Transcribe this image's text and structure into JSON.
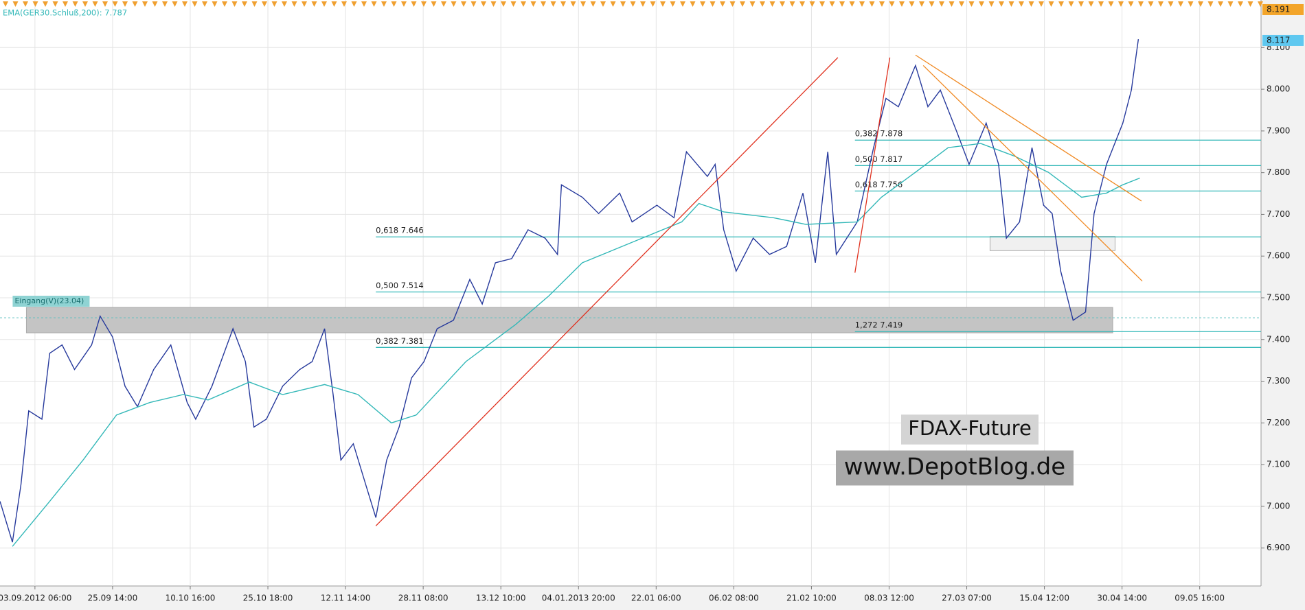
{
  "chart_data": {
    "type": "line",
    "series": [
      {
        "color": "#26399c",
        "x": [
          -0.45,
          -0.29,
          -0.18,
          -0.08,
          0.09,
          0.19,
          0.35,
          0.51,
          0.73,
          0.84,
          1.0,
          1.16,
          1.32,
          1.53,
          1.75,
          1.96,
          2.07,
          2.28,
          2.55,
          2.71,
          2.82,
          2.98,
          3.19,
          3.41,
          3.57,
          3.73,
          3.84,
          3.94,
          4.1,
          4.26,
          4.39,
          4.53,
          4.69,
          4.85,
          5.01,
          5.18,
          5.39,
          5.6,
          5.76,
          5.93,
          6.14,
          6.35,
          6.57,
          6.73,
          6.78,
          7.05,
          7.26,
          7.53,
          7.69,
          8.01,
          8.23,
          8.39,
          8.66,
          8.76,
          8.87,
          9.03,
          9.25,
          9.46,
          9.68,
          9.89,
          10.05,
          10.21,
          10.32,
          10.59,
          10.8,
          10.96,
          11.12,
          11.34,
          11.5,
          11.66,
          11.87,
          12.03,
          12.25,
          12.41,
          12.51,
          12.68,
          12.84,
          12.99,
          13.1,
          13.21,
          13.37,
          13.53,
          13.64,
          13.8,
          14.01,
          14.12,
          14.21
        ],
        "values": [
          7012,
          6914,
          7052,
          7229,
          7209,
          7367,
          7387,
          7328,
          7387,
          7456,
          7406,
          7288,
          7239,
          7328,
          7387,
          7249,
          7209,
          7288,
          7426,
          7347,
          7190,
          7209,
          7288,
          7328,
          7347,
          7426,
          7268,
          7111,
          7150,
          7052,
          6973,
          7111,
          7190,
          7308,
          7347,
          7426,
          7446,
          7544,
          7485,
          7584,
          7594,
          7663,
          7643,
          7604,
          7771,
          7741,
          7702,
          7751,
          7682,
          7722,
          7692,
          7850,
          7791,
          7820,
          7663,
          7564,
          7643,
          7604,
          7623,
          7751,
          7584,
          7850,
          7604,
          7682,
          7860,
          7978,
          7958,
          8057,
          7958,
          7998,
          7899,
          7820,
          7919,
          7820,
          7643,
          7682,
          7860,
          7722,
          7702,
          7564,
          7446,
          7466,
          7702,
          7820,
          7919,
          7998,
          8120
        ]
      },
      {
        "name": "EMA(GER30.Schluß,200): 7.787",
        "color": "#33b8b8",
        "x": [
          -0.29,
          0.19,
          0.62,
          1.05,
          1.48,
          1.91,
          2.23,
          2.76,
          3.19,
          3.73,
          4.16,
          4.59,
          4.91,
          5.55,
          6.19,
          6.62,
          7.05,
          7.69,
          8.33,
          8.55,
          8.87,
          9.51,
          9.93,
          10.59,
          10.9,
          11.34,
          11.76,
          12.18,
          12.61,
          13.05,
          13.48,
          13.8,
          14.01,
          14.23
        ],
        "values": [
          6904,
          7012,
          7111,
          7219,
          7249,
          7268,
          7255,
          7298,
          7268,
          7292,
          7268,
          7200,
          7219,
          7347,
          7436,
          7505,
          7584,
          7633,
          7682,
          7726,
          7706,
          7692,
          7676,
          7682,
          7741,
          7801,
          7860,
          7870,
          7840,
          7801,
          7741,
          7751,
          7771,
          7787
        ]
      }
    ],
    "xlim": [
      -0.45,
      15.79
    ],
    "xticks": [
      {
        "value": 0,
        "label": "03.09.2012 06:00"
      },
      {
        "value": 1,
        "label": "25.09 14:00"
      },
      {
        "value": 2,
        "label": "10.10 16:00"
      },
      {
        "value": 3,
        "label": "25.10 18:00"
      },
      {
        "value": 4,
        "label": "12.11 14:00"
      },
      {
        "value": 5,
        "label": "28.11 08:00"
      },
      {
        "value": 6,
        "label": "13.12 10:00"
      },
      {
        "value": 7,
        "label": "04.01.2013 20:00"
      },
      {
        "value": 8,
        "label": "22.01 06:00"
      },
      {
        "value": 9,
        "label": "06.02 08:00"
      },
      {
        "value": 10,
        "label": "21.02 10:00"
      },
      {
        "value": 11,
        "label": "08.03 12:00"
      },
      {
        "value": 12,
        "label": "27.03 07:00"
      },
      {
        "value": 13,
        "label": "15.04 12:00"
      },
      {
        "value": 14,
        "label": "30.04 14:00"
      },
      {
        "value": 15,
        "label": "09.05 16:00"
      }
    ],
    "ylim": [
      6809,
      8214
    ],
    "yticks": [
      {
        "value": 6900,
        "label": "6.900"
      },
      {
        "value": 7000,
        "label": "7.000"
      },
      {
        "value": 7100,
        "label": "7.100"
      },
      {
        "value": 7200,
        "label": "7.200"
      },
      {
        "value": 7300,
        "label": "7.300"
      },
      {
        "value": 7400,
        "label": "7.400"
      },
      {
        "value": 7500,
        "label": "7.500"
      },
      {
        "value": 7600,
        "label": "7.600"
      },
      {
        "value": 7700,
        "label": "7.700"
      },
      {
        "value": 7800,
        "label": "7.800"
      },
      {
        "value": 7900,
        "label": "7.900"
      },
      {
        "value": 8000,
        "label": "8.000"
      },
      {
        "value": 8100,
        "label": "8.100"
      }
    ],
    "grid": true,
    "levels": [
      {
        "label": "0,618 7.646",
        "value": 7646,
        "x": 4.39
      },
      {
        "label": "0,500 7.514",
        "value": 7514,
        "x": 4.39
      },
      {
        "label": "0,382 7.381",
        "value": 7381,
        "x": 4.39
      },
      {
        "label": "0,382 7.878",
        "value": 7878,
        "x": 10.56
      },
      {
        "label": "0,500 7.817",
        "value": 7817,
        "x": 10.56
      },
      {
        "label": "0,618 7.756",
        "value": 7756,
        "x": 10.56
      },
      {
        "label": "1,272 7.419",
        "value": 7419,
        "x": 10.56
      }
    ],
    "level_color": "#33b8b8",
    "zones": [
      {
        "label": "Eingang(V)(23.04)",
        "x": [
          -0.11,
          13.88
        ],
        "y": [
          7416,
          7477
        ]
      },
      {
        "x": [
          12.3,
          13.91
        ],
        "y": [
          7613,
          7647
        ]
      }
    ],
    "reference_line": 7452,
    "trendlines": [
      {
        "color": "#e0301e",
        "x": [
          4.39,
          10.34
        ],
        "values": [
          6953,
          8076
        ]
      },
      {
        "color": "#e0301e",
        "x": [
          10.56,
          11.01
        ],
        "values": [
          7560,
          8076
        ]
      },
      {
        "color": "#f08a24",
        "x": [
          11.34,
          14.25
        ],
        "values": [
          8082,
          7732
        ]
      },
      {
        "color": "#f08a24",
        "x": [
          11.44,
          14.26
        ],
        "values": [
          8057,
          7540
        ]
      }
    ],
    "last_price": {
      "value": 8117,
      "label": "8.117"
    },
    "high_marker": {
      "value": 8191,
      "label": "8.191"
    },
    "watermarks": [
      "FDAX-Future",
      "www.DepotBlog.de"
    ]
  }
}
